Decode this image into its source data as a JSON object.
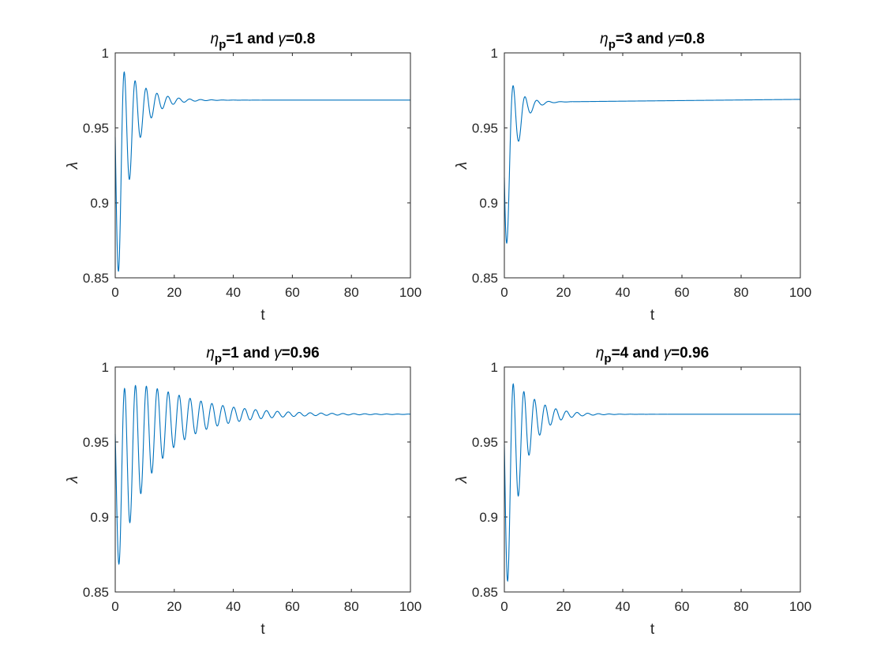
{
  "chart_data": [
    {
      "type": "line",
      "title": {
        "sym1": "η",
        "sub": "p",
        "mid": "=1 and ",
        "sym2": "γ",
        "end": "=0.8"
      },
      "xlabel": "t",
      "ylabel": "λ",
      "xlim": [
        0,
        100
      ],
      "ylim": [
        0.85,
        1
      ],
      "xticks": [
        "0",
        "20",
        "40",
        "60",
        "80",
        "100"
      ],
      "yticks": [
        "0.85",
        "0.9",
        "0.95",
        "1"
      ],
      "series_color": "#0072BD",
      "model": {
        "L": 0.9685,
        "slope": 0,
        "B": 0.062,
        "tb": 4,
        "A": 0.083,
        "ta": 5.5,
        "period": 3.7,
        "tmin": 1.2
      },
      "key_points": {
        "start": 0.9,
        "first_min": [
          1.2,
          0.873
        ],
        "first_max": [
          3.1,
          0.989
        ],
        "steady": 0.9685
      }
    },
    {
      "type": "line",
      "title": {
        "sym1": "η",
        "sub": "p",
        "mid": "=3 and ",
        "sym2": "γ",
        "end": "=0.8"
      },
      "xlabel": "t",
      "ylabel": "λ",
      "xlim": [
        0,
        100
      ],
      "ylim": [
        0.85,
        1
      ],
      "xticks": [
        "0",
        "20",
        "40",
        "60",
        "80",
        "100"
      ],
      "yticks": [
        "0.85",
        "0.9",
        "0.95",
        "1"
      ],
      "series_color": "#0072BD",
      "model": {
        "L": 0.967,
        "slope": 2e-05,
        "B": 0.05,
        "tb": 3,
        "A": 0.075,
        "ta": 3.2,
        "period": 4.0,
        "tmin": 1.0
      },
      "key_points": {
        "start": 0.9,
        "first_min": [
          1.0,
          0.879
        ],
        "first_max": [
          3.4,
          0.983
        ],
        "steady_end": 0.969
      }
    },
    {
      "type": "line",
      "title": {
        "sym1": "η",
        "sub": "p",
        "mid": "=1 and ",
        "sym2": "γ",
        "end": "=0.96"
      },
      "xlabel": "t",
      "ylabel": "λ",
      "xlim": [
        0,
        100
      ],
      "ylim": [
        0.85,
        1
      ],
      "xticks": [
        "0",
        "20",
        "40",
        "60",
        "80",
        "100"
      ],
      "yticks": [
        "0.85",
        "0.9",
        "0.95",
        "1"
      ],
      "series_color": "#0072BD",
      "model": {
        "L": 0.9685,
        "slope": 0,
        "B": 0.05,
        "tb": 8,
        "A": 0.062,
        "ta": 16,
        "period": 3.7,
        "tmin": 1.3
      },
      "key_points": {
        "start": 0.9,
        "first_min": [
          1.3,
          0.87
        ],
        "first_max": [
          3.1,
          0.991
        ],
        "steady": 0.9685
      }
    },
    {
      "type": "line",
      "title": {
        "sym1": "η",
        "sub": "p",
        "mid": "=4 and ",
        "sym2": "γ",
        "end": "=0.96"
      },
      "xlabel": "t",
      "ylabel": "λ",
      "xlim": [
        0,
        100
      ],
      "ylim": [
        0.85,
        1
      ],
      "xticks": [
        "0",
        "20",
        "40",
        "60",
        "80",
        "100"
      ],
      "yticks": [
        "0.85",
        "0.9",
        "0.95",
        "1"
      ],
      "series_color": "#0072BD",
      "model": {
        "L": 0.9685,
        "slope": 0,
        "B": 0.06,
        "tb": 4,
        "A": 0.08,
        "ta": 6,
        "period": 3.6,
        "tmin": 1.2
      },
      "key_points": {
        "start": 0.9,
        "first_min": [
          1.2,
          0.874
        ],
        "first_max": [
          3.1,
          0.989
        ],
        "steady": 0.9685
      }
    }
  ]
}
